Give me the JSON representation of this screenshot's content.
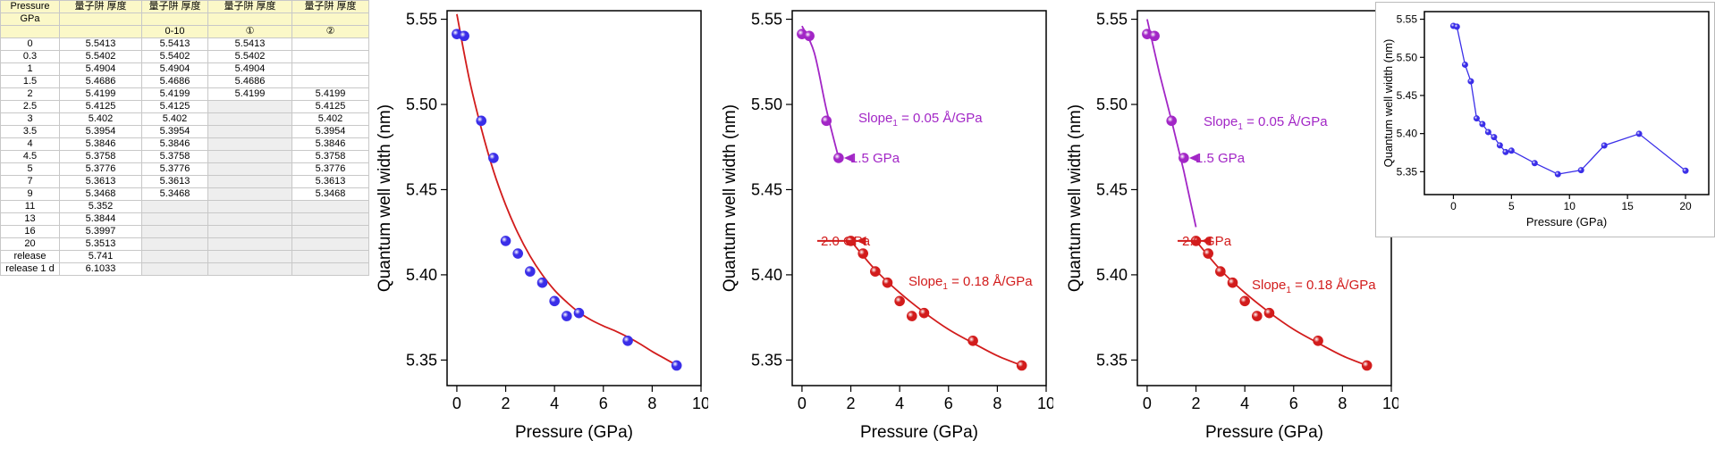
{
  "spreadsheet": {
    "header_row1": [
      "Pressure",
      "量子阱 厚度",
      "量子阱 厚度",
      "量子阱 厚度",
      "量子阱 厚度"
    ],
    "header_row2": [
      "GPa",
      "",
      "",
      "",
      ""
    ],
    "header_row3": [
      "",
      "",
      "0-10",
      "①",
      "②"
    ],
    "rows": [
      [
        "0",
        "5.5413",
        "5.5413",
        "5.5413",
        ""
      ],
      [
        "0.3",
        "5.5402",
        "5.5402",
        "5.5402",
        ""
      ],
      [
        "1",
        "5.4904",
        "5.4904",
        "5.4904",
        ""
      ],
      [
        "1.5",
        "5.4686",
        "5.4686",
        "5.4686",
        ""
      ],
      [
        "2",
        "5.4199",
        "5.4199",
        "5.4199",
        "5.4199"
      ],
      [
        "2.5",
        "5.4125",
        "5.4125",
        "",
        "5.4125"
      ],
      [
        "3",
        "5.402",
        "5.402",
        "",
        "5.402"
      ],
      [
        "3.5",
        "5.3954",
        "5.3954",
        "",
        "5.3954"
      ],
      [
        "4",
        "5.3846",
        "5.3846",
        "",
        "5.3846"
      ],
      [
        "4.5",
        "5.3758",
        "5.3758",
        "",
        "5.3758"
      ],
      [
        "5",
        "5.3776",
        "5.3776",
        "",
        "5.3776"
      ],
      [
        "7",
        "5.3613",
        "5.3613",
        "",
        "5.3613"
      ],
      [
        "9",
        "5.3468",
        "5.3468",
        "",
        "5.3468"
      ],
      [
        "11",
        "5.352",
        "",
        "",
        ""
      ],
      [
        "13",
        "5.3844",
        "",
        "",
        ""
      ],
      [
        "16",
        "5.3997",
        "",
        "",
        ""
      ],
      [
        "20",
        "5.3513",
        "",
        "",
        ""
      ],
      [
        "release",
        "5.741",
        "",
        "",
        ""
      ],
      [
        "release 1 d",
        "6.1033",
        "",
        "",
        ""
      ]
    ]
  },
  "chart_data": [
    {
      "type": "scatter",
      "title": "",
      "xlabel": "Pressure (GPa)",
      "ylabel": "Quantum well width (nm)",
      "xlim": [
        -0.4,
        10
      ],
      "ylim": [
        5.335,
        5.555
      ],
      "xticks": [
        "0",
        "2",
        "4",
        "6",
        "8",
        "10"
      ],
      "yticks": [
        "5.35",
        "5.40",
        "5.45",
        "5.50",
        "5.55"
      ],
      "series": [
        {
          "name": "data",
          "marker_color": "#3a2ee8",
          "x": [
            0,
            0.3,
            1,
            1.5,
            2,
            2.5,
            3,
            3.5,
            4,
            4.5,
            5,
            7,
            9
          ],
          "y": [
            5.5413,
            5.5402,
            5.4904,
            5.4686,
            5.4199,
            5.4125,
            5.402,
            5.3954,
            5.3846,
            5.3758,
            5.3776,
            5.3613,
            5.3468
          ]
        },
        {
          "name": "fit",
          "line_color": "#d21c1c",
          "x": [
            0,
            0.5,
            1,
            1.5,
            2,
            2.5,
            3,
            3.5,
            4,
            4.5,
            5,
            5.5,
            6,
            6.5,
            7,
            7.5,
            8,
            8.5,
            9
          ],
          "y": [
            5.553,
            5.5155,
            5.486,
            5.461,
            5.441,
            5.4245,
            5.411,
            5.4,
            5.391,
            5.384,
            5.378,
            5.3735,
            5.37,
            5.367,
            5.3635,
            5.3595,
            5.355,
            5.351,
            5.347
          ]
        }
      ]
    },
    {
      "type": "scatter",
      "title": "",
      "xlabel": "Pressure (GPa)",
      "ylabel": "Quantum well width (nm)",
      "xlim": [
        -0.4,
        10
      ],
      "ylim": [
        5.335,
        5.555
      ],
      "xticks": [
        "0",
        "2",
        "4",
        "6",
        "8",
        "10"
      ],
      "yticks": [
        "5.35",
        "5.40",
        "5.45",
        "5.50",
        "5.55"
      ],
      "series": [
        {
          "name": "segment 1",
          "marker_color": "#a226c6",
          "x": [
            0,
            0.3,
            1,
            1.5
          ],
          "y": [
            5.5413,
            5.5402,
            5.4904,
            5.4686
          ]
        },
        {
          "name": "fit 1",
          "line_color": "#a226c6",
          "x": [
            0,
            0.5,
            1,
            1.5
          ],
          "y": [
            5.546,
            5.5305,
            5.497,
            5.4686
          ]
        },
        {
          "name": "segment 2",
          "marker_color": "#d21c1c",
          "x": [
            2,
            2.5,
            3,
            3.5,
            4,
            4.5,
            5,
            7,
            9
          ],
          "y": [
            5.4199,
            5.4125,
            5.402,
            5.3954,
            5.3846,
            5.3758,
            5.3776,
            5.3613,
            5.3468
          ]
        },
        {
          "name": "fit 2",
          "line_color": "#d21c1c",
          "x": [
            2,
            3,
            4,
            5,
            6,
            7,
            8,
            9
          ],
          "y": [
            5.4199,
            5.403,
            5.3895,
            5.378,
            5.368,
            5.36,
            5.3525,
            5.3468
          ]
        }
      ],
      "annotations": {
        "slope_purple": "Slope",
        "slope_purple_sub": "1",
        "slope_purple_val": " = 0.05 Å/GPa",
        "arrow_purple": "1.5 GPa",
        "slope_red": "Slope",
        "slope_red_sub": "1",
        "slope_red_val": " = 0.18 Å/GPa",
        "arrow_red": "2.0 GPa"
      }
    },
    {
      "type": "scatter",
      "title": "",
      "xlabel": "Pressure (GPa)",
      "ylabel": "Quantum well width (nm)",
      "xlim": [
        -0.4,
        10
      ],
      "ylim": [
        5.335,
        5.555
      ],
      "xticks": [
        "0",
        "2",
        "4",
        "6",
        "8",
        "10"
      ],
      "yticks": [
        "5.35",
        "5.40",
        "5.45",
        "5.50",
        "5.55"
      ],
      "series": [
        {
          "name": "segment 1",
          "marker_color": "#a226c6",
          "x": [
            0,
            0.3,
            1,
            1.5
          ],
          "y": [
            5.5413,
            5.5402,
            5.4904,
            5.4686
          ]
        },
        {
          "name": "fit 1",
          "line_color": "#a226c6",
          "x": [
            0,
            0.5,
            1,
            1.5,
            2
          ],
          "y": [
            5.55,
            5.5185,
            5.4905,
            5.461,
            5.428
          ]
        },
        {
          "name": "segment 2",
          "marker_color": "#d21c1c",
          "x": [
            2,
            2.5,
            3,
            3.5,
            4,
            4.5,
            5,
            7,
            9
          ],
          "y": [
            5.4199,
            5.4125,
            5.402,
            5.3954,
            5.3846,
            5.3758,
            5.3776,
            5.3613,
            5.3468
          ]
        },
        {
          "name": "fit 2",
          "line_color": "#d21c1c",
          "x": [
            2,
            3,
            4,
            5,
            6,
            7,
            8,
            9
          ],
          "y": [
            5.4199,
            5.403,
            5.3895,
            5.378,
            5.368,
            5.36,
            5.3525,
            5.3468
          ]
        }
      ],
      "annotations": {
        "slope_purple": "Slope",
        "slope_purple_sub": "1",
        "slope_purple_val": " = 0.05 Å/GPa",
        "arrow_purple": "1.5 GPa",
        "slope_red": "Slope",
        "slope_red_sub": "1",
        "slope_red_val": " = 0.18 Å/GPa",
        "arrow_red": "2.0 GPa"
      }
    },
    {
      "type": "line",
      "title": "",
      "xlabel": "Pressure (GPa)",
      "ylabel": "Quantum well width (nm)",
      "xlim": [
        -2.5,
        22
      ],
      "ylim": [
        5.32,
        5.56
      ],
      "xticks": [
        "0",
        "5",
        "10",
        "15",
        "20"
      ],
      "yticks": [
        "5.35",
        "5.40",
        "5.45",
        "5.50",
        "5.55"
      ],
      "series": [
        {
          "name": "data",
          "marker_color": "#3a2ee8",
          "x": [
            0,
            0.3,
            1,
            1.5,
            2,
            2.5,
            3,
            3.5,
            4,
            4.5,
            5,
            7,
            9,
            11,
            13,
            16,
            20
          ],
          "y": [
            5.5413,
            5.5402,
            5.4904,
            5.4686,
            5.4199,
            5.4125,
            5.402,
            5.3954,
            5.3846,
            5.3758,
            5.3776,
            5.3613,
            5.3468,
            5.352,
            5.3844,
            5.3997,
            5.3513
          ]
        }
      ]
    }
  ]
}
